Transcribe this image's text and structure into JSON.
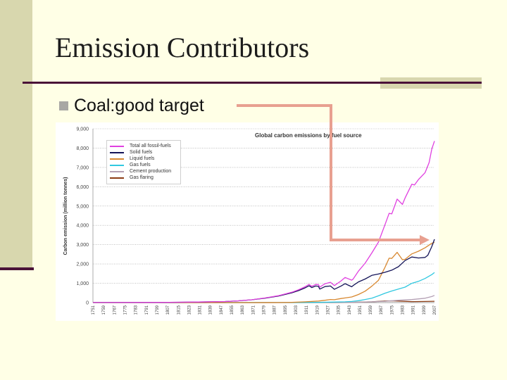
{
  "slide": {
    "title": "Emission Contributors",
    "bullet": "Coal:good target"
  },
  "chart_data": {
    "type": "line",
    "title": "Global carbon emissions by fuel source",
    "ylabel": "Carbon emission (million tonnes)",
    "xlabel": "",
    "ylim": [
      0,
      9000
    ],
    "xlim": [
      1751,
      2007
    ],
    "yticks": [
      "0",
      "1,000",
      "2,000",
      "3,000",
      "4,000",
      "5,000",
      "6,000",
      "7,000",
      "8,000",
      "9,000"
    ],
    "xticks": [
      "1751",
      "1759",
      "1767",
      "1775",
      "1783",
      "1791",
      "1799",
      "1807",
      "1815",
      "1823",
      "1831",
      "1839",
      "1847",
      "1855",
      "1863",
      "1871",
      "1879",
      "1887",
      "1895",
      "1903",
      "1911",
      "1919",
      "1927",
      "1935",
      "1943",
      "1951",
      "1959",
      "1967",
      "1975",
      "1983",
      "1991",
      "1999",
      "2007"
    ],
    "grid": true,
    "legend_position": "top-left",
    "series": [
      {
        "name": "Total all fossil-fuels",
        "color": "#E040E0",
        "x": [
          1751,
          1800,
          1830,
          1850,
          1860,
          1870,
          1880,
          1890,
          1900,
          1905,
          1910,
          1913,
          1915,
          1918,
          1920,
          1921,
          1925,
          1929,
          1932,
          1937,
          1940,
          1945,
          1946,
          1950,
          1955,
          1960,
          1965,
          1970,
          1973,
          1975,
          1979,
          1983,
          1985,
          1990,
          1992,
          1995,
          2000,
          2003,
          2005,
          2007
        ],
        "y": [
          3,
          8,
          30,
          54,
          90,
          147,
          240,
          356,
          534,
          663,
          819,
          943,
          845,
          940,
          932,
          803,
          975,
          1053,
          881,
          1125,
          1299,
          1161,
          1212,
          1630,
          2041,
          2569,
          3130,
          4053,
          4620,
          4596,
          5359,
          5083,
          5421,
          6127,
          6089,
          6372,
          6731,
          7250,
          7950,
          8365
        ]
      },
      {
        "name": "Solid fuels",
        "color": "#141458",
        "x": [
          1751,
          1800,
          1830,
          1850,
          1860,
          1870,
          1880,
          1890,
          1900,
          1905,
          1910,
          1913,
          1915,
          1918,
          1920,
          1921,
          1925,
          1929,
          1932,
          1937,
          1940,
          1945,
          1946,
          1950,
          1955,
          1960,
          1965,
          1970,
          1975,
          1980,
          1985,
          1990,
          1995,
          2000,
          2002,
          2005,
          2007
        ],
        "y": [
          3,
          8,
          30,
          54,
          90,
          145,
          230,
          340,
          505,
          620,
          760,
          870,
          780,
          860,
          840,
          700,
          830,
          860,
          690,
          860,
          980,
          820,
          880,
          1070,
          1220,
          1410,
          1480,
          1570,
          1680,
          1860,
          2180,
          2360,
          2310,
          2340,
          2450,
          2900,
          3280
        ]
      },
      {
        "name": "Liquid fuels",
        "color": "#D88830",
        "x": [
          1751,
          1870,
          1890,
          1900,
          1910,
          1920,
          1925,
          1929,
          1932,
          1937,
          1940,
          1945,
          1950,
          1955,
          1960,
          1965,
          1970,
          1973,
          1975,
          1979,
          1983,
          1985,
          1990,
          1995,
          2000,
          2005,
          2007
        ],
        "y": [
          0,
          1,
          4,
          15,
          40,
          80,
          120,
          160,
          150,
          210,
          240,
          290,
          420,
          590,
          850,
          1150,
          1840,
          2300,
          2290,
          2600,
          2220,
          2240,
          2520,
          2660,
          2840,
          3070,
          3120
        ]
      },
      {
        "name": "Gas fuels",
        "color": "#30C8E0",
        "x": [
          1751,
          1890,
          1900,
          1910,
          1920,
          1930,
          1940,
          1945,
          1950,
          1955,
          1960,
          1965,
          1970,
          1975,
          1980,
          1985,
          1990,
          1995,
          2000,
          2005,
          2007
        ],
        "y": [
          0,
          2,
          4,
          6,
          10,
          25,
          40,
          60,
          97,
          160,
          230,
          350,
          490,
          600,
          700,
          800,
          1000,
          1100,
          1250,
          1450,
          1560
        ]
      },
      {
        "name": "Cement production",
        "color": "#B4A0B4",
        "x": [
          1751,
          1925,
          1935,
          1945,
          1950,
          1960,
          1970,
          1980,
          1990,
          2000,
          2005,
          2007
        ],
        "y": [
          0,
          8,
          12,
          12,
          18,
          40,
          70,
          120,
          157,
          225,
          315,
          370
        ]
      },
      {
        "name": "Gas flaring",
        "color": "#8C3C14",
        "x": [
          1751,
          1930,
          1940,
          1950,
          1960,
          1970,
          1975,
          1980,
          1990,
          2000,
          2007
        ],
        "y": [
          0,
          1,
          3,
          23,
          39,
          87,
          90,
          80,
          50,
          60,
          70
        ]
      }
    ]
  }
}
